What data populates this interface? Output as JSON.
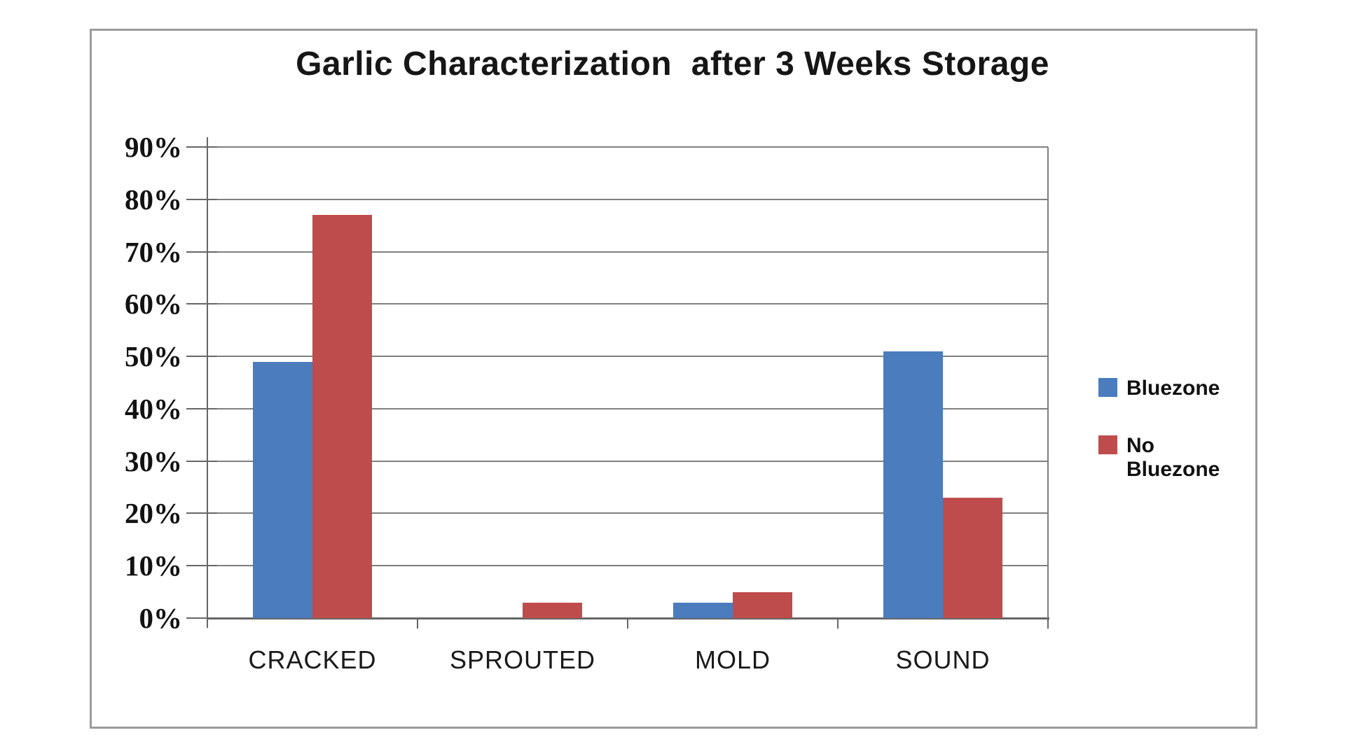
{
  "chart_data": {
    "type": "bar",
    "title": "Garlic Characterization  after 3 Weeks Storage",
    "categories": [
      "CRACKED",
      "SPROUTED",
      "MOLD",
      "SOUND"
    ],
    "series": [
      {
        "name": "Bluezone",
        "color": "#4A7CBE",
        "values": [
          49,
          0,
          3,
          51
        ]
      },
      {
        "name": "No Bluezone",
        "color": "#BF4C4C",
        "values": [
          77,
          3,
          5,
          23
        ]
      }
    ],
    "unit": "%",
    "ylim": [
      0,
      90
    ],
    "ytick_step": 10,
    "ytick_labels": [
      "0%",
      "10%",
      "20%",
      "30%",
      "40%",
      "50%",
      "60%",
      "70%",
      "80%",
      "90%"
    ],
    "xlabel": "",
    "ylabel": "",
    "grid": true,
    "legend_position": "right",
    "colors": {
      "gridline": "#7f7f7f",
      "axis": "#666666",
      "frame_border": "#9b9b9b",
      "text": "#161616",
      "background": "#ffffff"
    }
  }
}
